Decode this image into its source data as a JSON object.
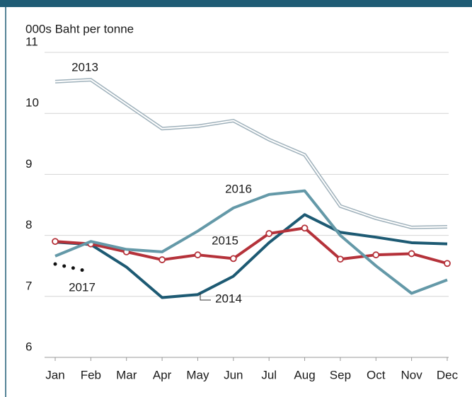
{
  "chart_data": {
    "type": "line",
    "y_axis_label": "000s Baht per tonne",
    "categories": [
      "Jan",
      "Feb",
      "Mar",
      "Apr",
      "May",
      "Jun",
      "Jul",
      "Aug",
      "Sep",
      "Oct",
      "Nov",
      "Dec"
    ],
    "ylim": [
      6,
      11
    ],
    "yticks": [
      6,
      7,
      8,
      9,
      10,
      11
    ],
    "grid": true,
    "series": [
      {
        "name": "2013",
        "color": "#9fb1bb",
        "style": "double",
        "values": [
          10.52,
          10.55,
          10.15,
          9.75,
          9.79,
          9.88,
          9.57,
          9.32,
          8.48,
          8.28,
          8.13,
          8.14
        ]
      },
      {
        "name": "2014",
        "color": "#1d5a73",
        "style": "solid",
        "values": [
          7.89,
          7.85,
          7.48,
          6.98,
          7.03,
          7.33,
          7.88,
          8.34,
          8.05,
          7.97,
          7.88,
          7.86
        ]
      },
      {
        "name": "2015",
        "color": "#b5323a",
        "style": "markers",
        "values": [
          7.9,
          7.86,
          7.73,
          7.6,
          7.68,
          7.62,
          8.03,
          8.12,
          7.61,
          7.68,
          7.7,
          7.54
        ]
      },
      {
        "name": "2016",
        "color": "#6499a8",
        "style": "solid",
        "values": [
          7.66,
          7.9,
          7.77,
          7.73,
          8.07,
          8.45,
          8.67,
          8.73,
          8.0,
          7.5,
          7.05,
          7.27
        ]
      },
      {
        "name": "2017",
        "color": "#111111",
        "style": "dotted",
        "values": [
          7.53,
          7.4,
          null,
          null,
          null,
          null,
          null,
          null,
          null,
          null,
          null,
          null
        ]
      }
    ]
  }
}
